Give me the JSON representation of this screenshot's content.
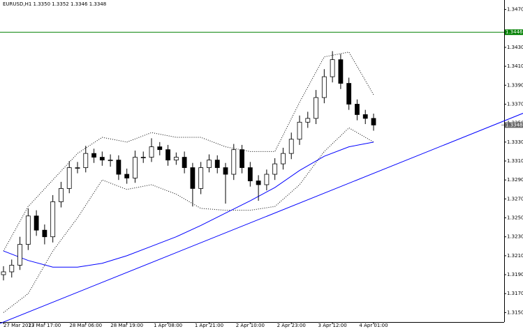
{
  "chart_data": {
    "type": "candlestick",
    "title": "EURUSD,H1 1.3350 1.3352 1.3346 1.3348",
    "categories": [
      "27 Mar 2013",
      null,
      null,
      null,
      null,
      "27 Mar 17:00",
      null,
      null,
      null,
      null,
      "28 Mar 06:00",
      null,
      null,
      null,
      null,
      "28 Mar 19:00",
      null,
      null,
      null,
      null,
      "1 Apr 08:00",
      null,
      null,
      null,
      null,
      "1 Apr 21:00",
      null,
      null,
      null,
      null,
      "2 Apr 10:00",
      null,
      null,
      null,
      null,
      "2 Apr 23:00",
      null,
      null,
      null,
      null,
      "3 Apr 12:00",
      null,
      null,
      null,
      null,
      "4 Apr 01:00"
    ],
    "open": [
      1.319,
      1.3193,
      1.32,
      1.3222,
      1.3252,
      1.3237,
      1.323,
      1.3267,
      1.3281,
      1.3303,
      1.3303,
      1.3318,
      1.3314,
      1.3311,
      1.3311,
      1.3296,
      1.3292,
      1.3314,
      1.3314,
      1.3325,
      1.3322,
      1.3311,
      1.3314,
      1.3303,
      1.3281,
      1.3303,
      1.3311,
      1.3303,
      1.3296,
      1.3322,
      1.3303,
      1.3289,
      1.3285,
      1.3296,
      1.3307,
      1.3318,
      1.3333,
      1.3351,
      1.3355,
      1.3377,
      1.3399,
      1.3417,
      1.3392,
      1.337,
      1.3359,
      1.3355
    ],
    "high": [
      1.3199,
      1.3206,
      1.323,
      1.326,
      1.3258,
      1.3243,
      1.3274,
      1.3288,
      1.331,
      1.3309,
      1.3326,
      1.3323,
      1.332,
      1.3317,
      1.3316,
      1.3302,
      1.3321,
      1.332,
      1.3334,
      1.333,
      1.3327,
      1.3319,
      1.332,
      1.3308,
      1.3309,
      1.3317,
      1.3316,
      1.3308,
      1.3328,
      1.3327,
      1.3309,
      1.3295,
      1.3301,
      1.3313,
      1.3324,
      1.334,
      1.3358,
      1.3362,
      1.3385,
      1.3407,
      1.3426,
      1.3423,
      1.3398,
      1.3375,
      1.3364,
      1.336
    ],
    "low": [
      1.3184,
      1.3187,
      1.3195,
      1.3216,
      1.3231,
      1.3222,
      1.3224,
      1.3261,
      1.3276,
      1.3297,
      1.3298,
      1.3308,
      1.3305,
      1.3304,
      1.329,
      1.3286,
      1.3287,
      1.3308,
      1.3309,
      1.3316,
      1.3305,
      1.3306,
      1.3297,
      1.3262,
      1.3275,
      1.3298,
      1.3297,
      1.3265,
      1.329,
      1.3297,
      1.3283,
      1.3268,
      1.3279,
      1.329,
      1.3301,
      1.3312,
      1.3327,
      1.3345,
      1.3349,
      1.3371,
      1.3393,
      1.3386,
      1.3364,
      1.3353,
      1.3349,
      1.3342
    ],
    "close": [
      1.3193,
      1.32,
      1.3222,
      1.3252,
      1.3237,
      1.323,
      1.3267,
      1.3281,
      1.3303,
      1.3303,
      1.3318,
      1.3314,
      1.3311,
      1.3311,
      1.3296,
      1.3292,
      1.3314,
      1.3314,
      1.3325,
      1.3322,
      1.3311,
      1.3314,
      1.3303,
      1.3281,
      1.3303,
      1.3311,
      1.3303,
      1.3296,
      1.3322,
      1.3303,
      1.3289,
      1.3285,
      1.3296,
      1.3307,
      1.3318,
      1.3333,
      1.3351,
      1.3355,
      1.3377,
      1.3399,
      1.3417,
      1.3392,
      1.337,
      1.3359,
      1.3355,
      1.3348
    ],
    "lines": [
      {
        "name": "upper-band",
        "color": "#000000",
        "dash": true,
        "x": [
          0,
          3,
          6,
          9,
          12,
          15,
          18,
          21,
          24,
          27,
          30,
          33,
          36,
          39,
          42,
          45
        ],
        "values": [
          1.3215,
          1.3262,
          1.329,
          1.3318,
          1.3335,
          1.333,
          1.334,
          1.3335,
          1.3335,
          1.3325,
          1.332,
          1.332,
          1.3372,
          1.342,
          1.3425,
          1.338
        ]
      },
      {
        "name": "lower-band",
        "color": "#000000",
        "dash": true,
        "x": [
          0,
          3,
          6,
          9,
          12,
          15,
          18,
          21,
          24,
          27,
          30,
          33,
          36,
          39,
          42,
          45
        ],
        "values": [
          1.315,
          1.317,
          1.3215,
          1.325,
          1.329,
          1.328,
          1.3285,
          1.3275,
          1.326,
          1.3258,
          1.3258,
          1.3262,
          1.3285,
          1.332,
          1.3345,
          1.333
        ]
      },
      {
        "name": "moving-average",
        "color": "#0000ff",
        "dash": false,
        "x": [
          0,
          3,
          6,
          9,
          12,
          15,
          18,
          21,
          24,
          27,
          30,
          33,
          36,
          39,
          42,
          45
        ],
        "values": [
          1.3215,
          1.3205,
          1.3198,
          1.3198,
          1.3202,
          1.321,
          1.322,
          1.323,
          1.3242,
          1.3255,
          1.3268,
          1.3282,
          1.33,
          1.3315,
          1.3325,
          1.333
        ]
      }
    ],
    "trendline": {
      "color": "#0000ff",
      "x": [
        0,
        45
      ],
      "values": [
        1.314,
        1.3297
      ]
    },
    "hline": {
      "color": "#008000",
      "value": 1.3446,
      "label": "1.3446"
    },
    "bid": {
      "value": 1.3348,
      "label": "1.3348"
    },
    "ylim": [
      1.314,
      1.348
    ],
    "yticks": [
      {
        "value": 1.315,
        "label": "1.3150"
      },
      {
        "value": 1.317,
        "label": "1.3170"
      },
      {
        "value": 1.319,
        "label": "1.3190"
      },
      {
        "value": 1.321,
        "label": "1.3210"
      },
      {
        "value": 1.323,
        "label": "1.3230"
      },
      {
        "value": 1.325,
        "label": "1.3250"
      },
      {
        "value": 1.327,
        "label": "1.3270"
      },
      {
        "value": 1.329,
        "label": "1.3290"
      },
      {
        "value": 1.331,
        "label": "1.3310"
      },
      {
        "value": 1.333,
        "label": "1.3330"
      },
      {
        "value": 1.335,
        "label": "1.3350"
      },
      {
        "value": 1.337,
        "label": "1.3370"
      },
      {
        "value": 1.339,
        "label": "1.3390"
      },
      {
        "value": 1.341,
        "label": "1.3410"
      },
      {
        "value": 1.343,
        "label": "1.3430"
      },
      {
        "value": 1.347,
        "label": "1.3470"
      }
    ]
  }
}
